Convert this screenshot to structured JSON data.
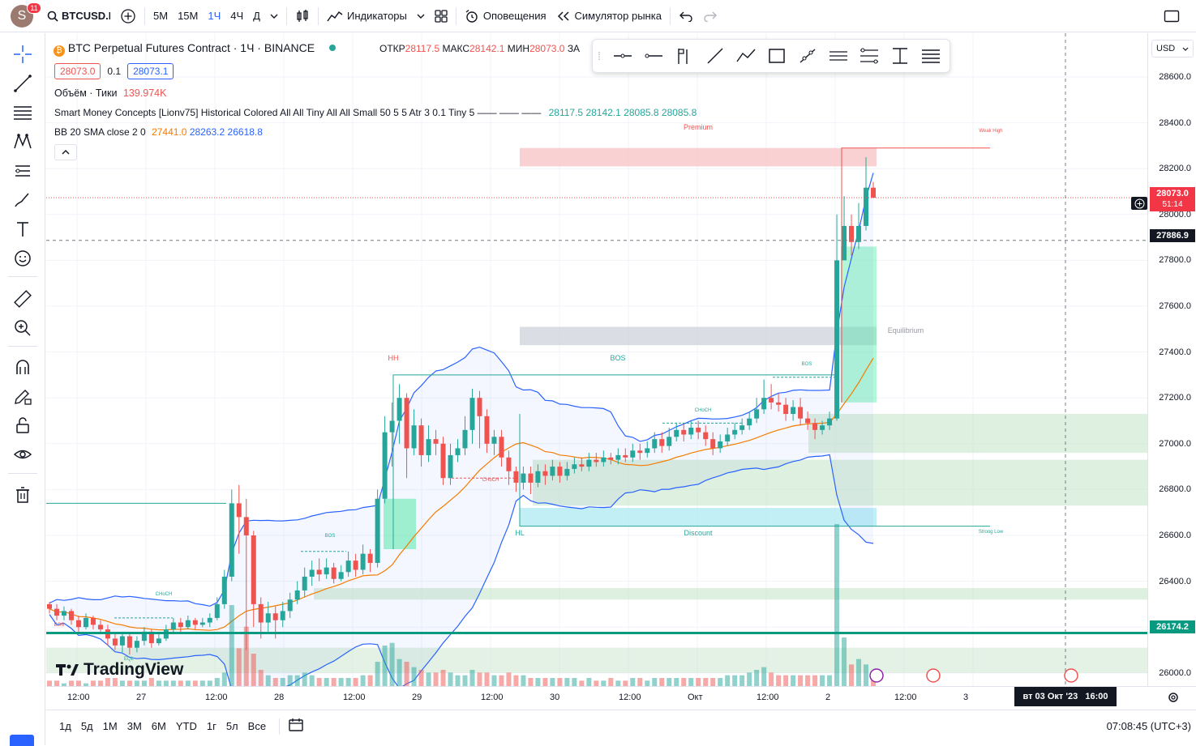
{
  "header": {
    "notif_count": "11",
    "avatar_letter": "S",
    "symbol": "BTCUSD.F",
    "intervals": [
      "5М",
      "15М",
      "1Ч",
      "4Ч",
      "Д"
    ],
    "active_interval": "1Ч",
    "indicators_label": "Индикаторы",
    "alerts_label": "Оповещения",
    "replay_label": "Симулятор рынка"
  },
  "legend": {
    "title": "BTC Perpetual Futures Contract · 1Ч · BINANCE",
    "open_label": "ОТКР",
    "open": "28117.5",
    "high_label": "МАКС",
    "high": "28142.1",
    "low_label": "МИН",
    "low": "28073.0",
    "close_label": "ЗА",
    "bid": "28073.0",
    "spread": "0.1",
    "ask": "28073.1",
    "volume_label": "Объём · Тики",
    "volume_value": "139.974K",
    "smc_label": "Smart Money Concepts [Lionv75] Historical Colored All All Tiny All All Small 50 5 5 Atr 3 0.1 Tiny 5 —— —— ——",
    "smc_values": [
      "28117.5",
      "28142.1",
      "28085.8",
      "28085.8"
    ],
    "bb_label": "BB 20 SMA close 2 0",
    "bb_values": [
      "27441.0",
      "28263.2",
      "26618.8"
    ]
  },
  "annotations": {
    "premium": "Premium",
    "weak_high": "Weak High",
    "equilibrium": "Equilibrium",
    "discount": "Discount",
    "strong_low": "Strong Low",
    "hh": "HH",
    "hl": "HL",
    "bos": "BOS",
    "choch": "CHoCH",
    "eql": "EQL"
  },
  "price_axis": {
    "currency": "USD",
    "ticks": [
      "28600.0",
      "28400.0",
      "28200.0",
      "28000.0",
      "27800.0",
      "27600.0",
      "27400.0",
      "27200.0",
      "27000.0",
      "26800.0",
      "26600.0",
      "26400.0",
      "26200.0",
      "26000.0"
    ],
    "last_price": "28073.0",
    "countdown": "51:14",
    "crosshair_price": "27886.9",
    "line_price": "26174.2"
  },
  "time_axis": {
    "ticks": [
      "12:00",
      "27",
      "12:00",
      "28",
      "12:00",
      "29",
      "12:00",
      "30",
      "12:00",
      "Окт",
      "12:00",
      "2",
      "12:00",
      "3"
    ],
    "crosshair_time": "вт 03 Окт '23   16:00"
  },
  "bottom": {
    "ranges": [
      "1д",
      "5д",
      "1М",
      "3М",
      "6М",
      "YTD",
      "1г",
      "5л",
      "Все"
    ],
    "clock": "07:08:45 (UTC+3)"
  },
  "watermark": "TradingView",
  "colors": {
    "up": "#26a69a",
    "down": "#ef5350",
    "bb": "#2962ff",
    "basis": "#f57c00",
    "premium": "#f7c5c8",
    "discount": "#b2ebf2",
    "ob": "#c8e6c9"
  },
  "chart_data": {
    "type": "candlestick",
    "ylim": [
      25950,
      28700
    ],
    "candles": [
      [
        26300,
        26280,
        26310,
        26260
      ],
      [
        26280,
        26250,
        26300,
        26230
      ],
      [
        26250,
        26270,
        26290,
        26230
      ],
      [
        26270,
        26230,
        26280,
        26210
      ],
      [
        26230,
        26200,
        26250,
        26180
      ],
      [
        26200,
        26240,
        26260,
        26190
      ],
      [
        26240,
        26210,
        26250,
        26190
      ],
      [
        26210,
        26190,
        26230,
        26170
      ],
      [
        26190,
        26150,
        26210,
        26120
      ],
      [
        26150,
        26120,
        26170,
        26100
      ],
      [
        26120,
        26160,
        26180,
        26090
      ],
      [
        26160,
        26110,
        26170,
        26080
      ],
      [
        26110,
        26140,
        26160,
        26090
      ],
      [
        26140,
        26180,
        26200,
        26120
      ],
      [
        26180,
        26130,
        26190,
        26110
      ],
      [
        26130,
        26150,
        26170,
        26120
      ],
      [
        26150,
        26190,
        26210,
        26140
      ],
      [
        26190,
        26220,
        26240,
        26170
      ],
      [
        26220,
        26200,
        26240,
        26180
      ],
      [
        26200,
        26230,
        26250,
        26190
      ],
      [
        26230,
        26210,
        26240,
        26190
      ],
      [
        26210,
        26220,
        26240,
        26200
      ],
      [
        26220,
        26240,
        26260,
        26200
      ],
      [
        26240,
        26300,
        26330,
        26230
      ],
      [
        26300,
        26420,
        26450,
        26280
      ],
      [
        26420,
        26740,
        26800,
        26400
      ],
      [
        26740,
        26680,
        26820,
        26520
      ],
      [
        26680,
        26600,
        26760,
        26100
      ],
      [
        26600,
        26300,
        26620,
        26200
      ],
      [
        26300,
        26220,
        26330,
        26150
      ],
      [
        26220,
        26260,
        26310,
        26180
      ],
      [
        26260,
        26230,
        26290,
        26150
      ],
      [
        26230,
        26270,
        26310,
        26200
      ],
      [
        26270,
        26320,
        26350,
        26240
      ],
      [
        26320,
        26360,
        26400,
        26300
      ],
      [
        26360,
        26420,
        26460,
        26330
      ],
      [
        26420,
        26450,
        26490,
        26380
      ],
      [
        26450,
        26430,
        26500,
        26400
      ],
      [
        26430,
        26460,
        26500,
        26410
      ],
      [
        26460,
        26410,
        26480,
        26390
      ],
      [
        26410,
        26440,
        26470,
        26400
      ],
      [
        26440,
        26490,
        26530,
        26420
      ],
      [
        26490,
        26450,
        26520,
        26420
      ],
      [
        26450,
        26520,
        26560,
        26430
      ],
      [
        26520,
        26480,
        26540,
        26440
      ],
      [
        26480,
        26760,
        26800,
        26460
      ],
      [
        26760,
        27050,
        27120,
        26740
      ],
      [
        27050,
        27100,
        27180,
        26900
      ],
      [
        27100,
        27200,
        27260,
        27000
      ],
      [
        27200,
        26980,
        27220,
        26850
      ],
      [
        26980,
        27080,
        27150,
        26950
      ],
      [
        27080,
        26950,
        27110,
        26900
      ],
      [
        26950,
        27020,
        27080,
        26920
      ],
      [
        27020,
        27000,
        27060,
        26950
      ],
      [
        27000,
        26850,
        27030,
        26820
      ],
      [
        26850,
        26950,
        27000,
        26820
      ],
      [
        26950,
        26980,
        27020,
        26920
      ],
      [
        26980,
        27060,
        27120,
        26950
      ],
      [
        27060,
        27200,
        27240,
        27000
      ],
      [
        27200,
        27120,
        27230,
        26980
      ],
      [
        27120,
        27000,
        27150,
        26960
      ],
      [
        27000,
        27030,
        27060,
        26950
      ],
      [
        27030,
        26940,
        27060,
        26900
      ],
      [
        26940,
        26880,
        26970,
        26820
      ],
      [
        26880,
        26830,
        26900,
        26790
      ],
      [
        26830,
        26870,
        26900,
        26800
      ],
      [
        26870,
        26830,
        26900,
        26780
      ],
      [
        26830,
        26880,
        26910,
        26810
      ],
      [
        26880,
        26860,
        26910,
        26820
      ],
      [
        26860,
        26900,
        26930,
        26840
      ],
      [
        26900,
        26860,
        26920,
        26830
      ],
      [
        26860,
        26890,
        26920,
        26840
      ],
      [
        26890,
        26910,
        26940,
        26870
      ],
      [
        26910,
        26900,
        26940,
        26880
      ],
      [
        26900,
        26930,
        26960,
        26880
      ],
      [
        26930,
        26920,
        26960,
        26900
      ],
      [
        26920,
        26940,
        26970,
        26900
      ],
      [
        26940,
        26930,
        26960,
        26910
      ],
      [
        26930,
        26950,
        26980,
        26910
      ],
      [
        26950,
        26940,
        26980,
        26920
      ],
      [
        26940,
        26970,
        27000,
        26920
      ],
      [
        26970,
        26960,
        27000,
        26930
      ],
      [
        26960,
        26980,
        27010,
        26940
      ],
      [
        26980,
        27020,
        27050,
        26960
      ],
      [
        27020,
        26990,
        27050,
        26960
      ],
      [
        26990,
        27030,
        27070,
        26970
      ],
      [
        27030,
        27060,
        27090,
        27010
      ],
      [
        27060,
        27040,
        27090,
        27010
      ],
      [
        27040,
        27070,
        27100,
        27020
      ],
      [
        27070,
        27050,
        27100,
        27020
      ],
      [
        27050,
        27020,
        27080,
        26990
      ],
      [
        27020,
        26980,
        27050,
        26950
      ],
      [
        26980,
        27010,
        27040,
        26960
      ],
      [
        27010,
        27040,
        27070,
        26990
      ],
      [
        27040,
        27060,
        27090,
        27020
      ],
      [
        27060,
        27080,
        27110,
        27040
      ],
      [
        27080,
        27110,
        27140,
        27060
      ],
      [
        27110,
        27150,
        27200,
        27090
      ],
      [
        27150,
        27200,
        27280,
        27130
      ],
      [
        27200,
        27180,
        27260,
        27150
      ],
      [
        27180,
        27170,
        27220,
        27140
      ],
      [
        27170,
        27130,
        27200,
        27100
      ],
      [
        27130,
        27160,
        27190,
        27100
      ],
      [
        27160,
        27110,
        27200,
        27080
      ],
      [
        27110,
        27090,
        27140,
        27060
      ],
      [
        27090,
        27060,
        27110,
        27020
      ],
      [
        27060,
        27080,
        27100,
        27040
      ],
      [
        27080,
        27110,
        27140,
        27060
      ],
      [
        27110,
        27800,
        28000,
        27100
      ],
      [
        27800,
        27950,
        28080,
        27850
      ],
      [
        27950,
        27880,
        28000,
        27820
      ],
      [
        27880,
        27950,
        28050,
        27850
      ],
      [
        27950,
        28117,
        28250,
        27930
      ],
      [
        28117,
        28073,
        28142,
        28073
      ]
    ],
    "volumes": [
      2,
      2,
      1,
      2,
      2,
      1,
      2,
      2,
      3,
      3,
      2,
      2,
      2,
      2,
      3,
      2,
      2,
      2,
      2,
      2,
      2,
      2,
      2,
      3,
      5,
      30,
      14,
      22,
      12,
      6,
      4,
      3,
      3,
      4,
      4,
      5,
      4,
      3,
      3,
      3,
      3,
      3,
      3,
      4,
      4,
      9,
      15,
      16,
      10,
      9,
      7,
      6,
      5,
      5,
      6,
      5,
      4,
      4,
      6,
      5,
      5,
      4,
      4,
      5,
      4,
      4,
      3,
      3,
      3,
      3,
      3,
      3,
      3,
      2,
      3,
      2,
      2,
      3,
      2,
      2,
      3,
      3,
      2,
      3,
      3,
      3,
      3,
      3,
      3,
      3,
      3,
      3,
      3,
      4,
      4,
      4,
      5,
      6,
      7,
      5,
      4,
      4,
      4,
      4,
      4,
      4,
      4,
      4,
      60,
      18,
      8,
      10,
      8,
      3
    ]
  }
}
